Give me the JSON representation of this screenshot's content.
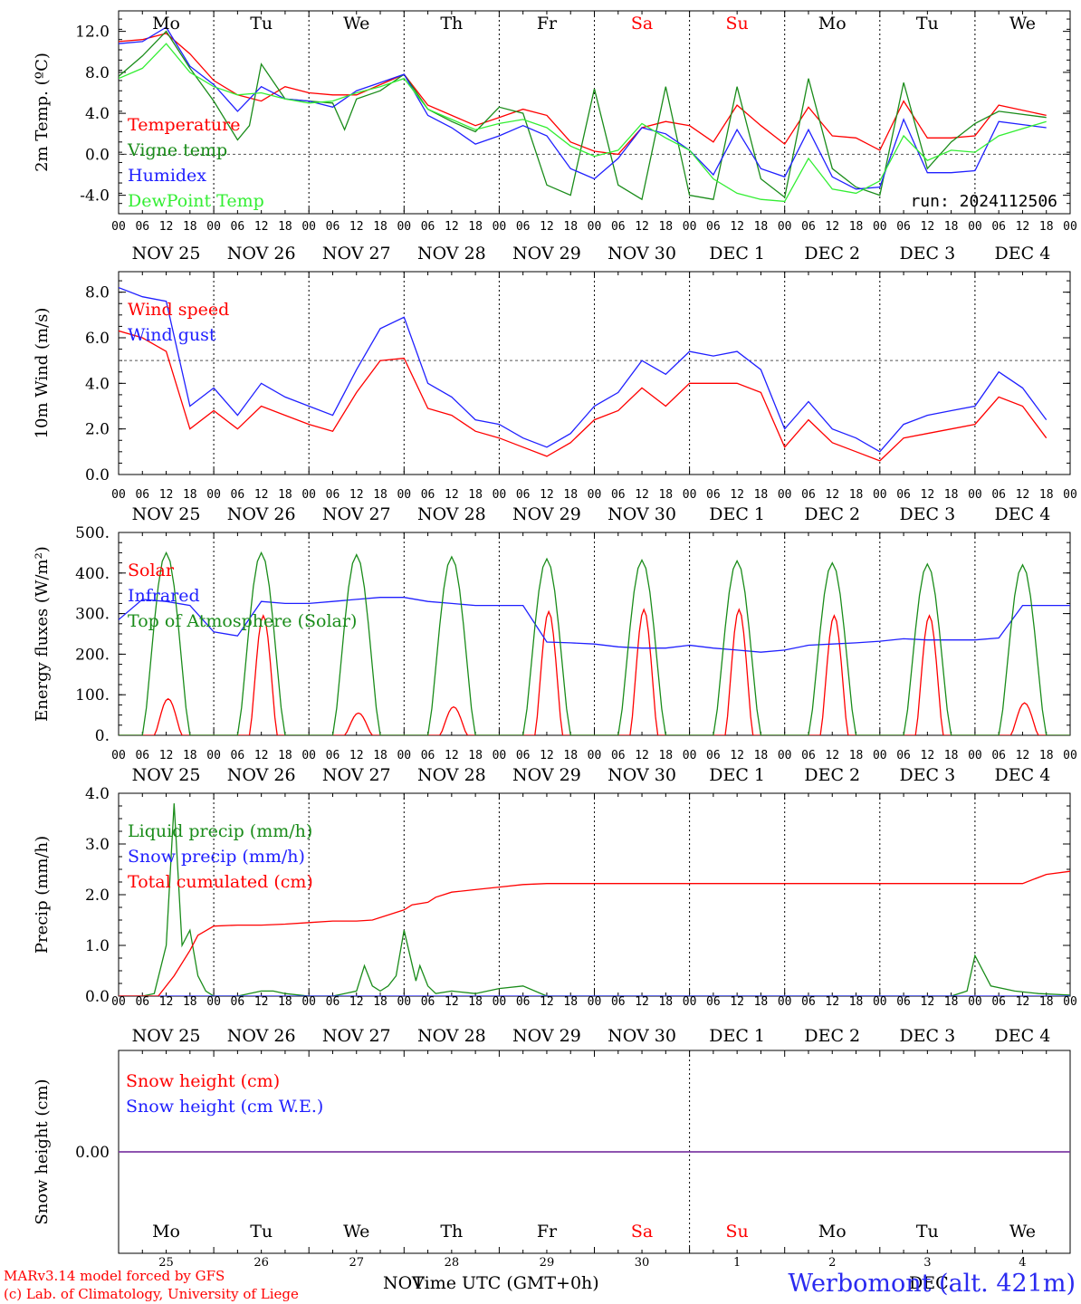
{
  "run_label": "run: 2024112506",
  "station": "Werbomont (alt. 421m)",
  "credits": [
    "MARv3.14 model forced by GFS",
    "(c) Lab. of Climatology, University of Liege"
  ],
  "x_axis": {
    "title": "Time UTC (GMT+0h)",
    "hours": [
      "00",
      "06",
      "12",
      "18"
    ],
    "last_hour": "00",
    "dates": [
      "NOV 25",
      "NOV 26",
      "NOV 27",
      "NOV 28",
      "NOV 29",
      "NOV 30",
      "DEC  1",
      "DEC  2",
      "DEC  3",
      "DEC  4"
    ],
    "weekdays": [
      "Mo",
      "Tu",
      "We",
      "Th",
      "Fr",
      "Sa",
      "Su",
      "Mo",
      "Tu",
      "We"
    ],
    "weekend_color": "#ff0000",
    "bottom_day_numbers": [
      "25",
      "26",
      "27",
      "28",
      "29",
      "30",
      "1",
      "2",
      "3",
      "4"
    ],
    "bottom_months": [
      "NOV",
      "DEC"
    ]
  },
  "colors": {
    "red": "#ff0000",
    "green": "#1a8c1a",
    "blue": "#2020ff",
    "lightgreen": "#33ee33",
    "purple": "#7b3fa6"
  },
  "chart_data": [
    {
      "type": "line",
      "ylabel": "2m Temp. (ºC)",
      "ylim": [
        -5.8,
        14.0
      ],
      "yticks": [
        -4.0,
        0.0,
        4.0,
        8.0,
        12.0
      ],
      "ytick_labels": [
        "-4.0",
        "0.0",
        "4.0",
        "8.0",
        "12.0"
      ],
      "ref_line": 0,
      "legend": [
        "Temperature",
        "Vigne temp",
        "Humidex",
        "DewPoint Temp"
      ],
      "series": [
        {
          "name": "Temperature",
          "color": "red",
          "x": [
            0,
            6,
            12,
            18,
            24,
            30,
            36,
            42,
            48,
            54,
            60,
            66,
            72,
            78,
            84,
            90,
            96,
            102,
            108,
            114,
            120,
            126,
            132,
            138,
            144,
            150,
            156,
            162,
            168,
            174,
            180,
            186,
            192,
            198,
            204,
            210,
            216,
            222,
            234
          ],
          "y": [
            11.0,
            11.2,
            11.8,
            9.8,
            7.2,
            5.8,
            5.2,
            6.6,
            6.0,
            5.8,
            5.8,
            6.8,
            7.8,
            4.8,
            3.8,
            2.8,
            3.6,
            4.4,
            3.8,
            1.2,
            0.3,
            0.0,
            2.6,
            3.2,
            2.8,
            1.2,
            4.8,
            2.8,
            1.0,
            4.6,
            1.8,
            1.6,
            0.4,
            5.2,
            1.6,
            1.6,
            1.8,
            4.8,
            3.8
          ]
        },
        {
          "name": "Vigne temp",
          "color": "green",
          "x": [
            0,
            6,
            12,
            18,
            24,
            30,
            33,
            36,
            42,
            48,
            54,
            57,
            60,
            66,
            72,
            78,
            84,
            90,
            96,
            102,
            108,
            114,
            120,
            126,
            132,
            138,
            144,
            150,
            156,
            162,
            168,
            174,
            180,
            186,
            192,
            198,
            204,
            210,
            216,
            222,
            234
          ],
          "y": [
            7.6,
            9.6,
            12.0,
            8.4,
            5.2,
            1.4,
            2.8,
            8.8,
            5.4,
            5.2,
            5.0,
            2.4,
            5.4,
            6.2,
            7.8,
            4.4,
            3.2,
            2.2,
            4.6,
            4.0,
            -3.0,
            -4.0,
            6.4,
            -3.0,
            -4.4,
            6.6,
            -4.0,
            -4.4,
            6.6,
            -2.4,
            -4.2,
            7.4,
            -1.4,
            -3.2,
            -4.0,
            7.0,
            -1.4,
            1.2,
            3.0,
            4.2,
            3.6
          ]
        },
        {
          "name": "Humidex",
          "color": "blue",
          "x": [
            0,
            6,
            12,
            18,
            24,
            30,
            36,
            42,
            48,
            54,
            60,
            66,
            72,
            78,
            84,
            90,
            96,
            102,
            108,
            114,
            120,
            126,
            132,
            138,
            144,
            150,
            156,
            162,
            168,
            174,
            180,
            186,
            192,
            198,
            204,
            210,
            216,
            222,
            234
          ],
          "y": [
            10.8,
            11.0,
            12.4,
            8.6,
            6.8,
            4.2,
            6.6,
            5.4,
            5.2,
            4.6,
            6.2,
            7.0,
            7.8,
            3.8,
            2.6,
            1.0,
            1.8,
            2.8,
            1.8,
            -1.4,
            -2.4,
            -0.4,
            2.6,
            2.0,
            0.4,
            -2.0,
            2.4,
            -1.4,
            -2.2,
            2.4,
            -2.2,
            -3.4,
            -3.2,
            3.4,
            -1.8,
            -1.8,
            -1.6,
            3.2,
            2.6
          ]
        },
        {
          "name": "DewPoint Temp",
          "color": "lightgreen",
          "x": [
            0,
            6,
            12,
            18,
            24,
            30,
            36,
            42,
            48,
            54,
            60,
            66,
            72,
            78,
            84,
            90,
            96,
            102,
            108,
            114,
            120,
            126,
            132,
            138,
            144,
            150,
            156,
            162,
            168,
            174,
            180,
            186,
            192,
            198,
            204,
            210,
            216,
            222,
            234
          ],
          "y": [
            7.4,
            8.4,
            10.8,
            8.0,
            6.6,
            5.8,
            6.0,
            5.4,
            5.0,
            5.2,
            6.0,
            6.6,
            7.4,
            4.4,
            3.4,
            2.4,
            3.0,
            3.4,
            2.6,
            0.8,
            -0.2,
            0.4,
            3.0,
            1.6,
            0.4,
            -2.4,
            -3.8,
            -4.4,
            -4.6,
            -0.4,
            -3.4,
            -3.8,
            -2.6,
            1.8,
            -0.6,
            0.4,
            0.2,
            1.8,
            3.2
          ]
        }
      ]
    },
    {
      "type": "line",
      "ylabel": "10m Wind (m/s)",
      "ylim": [
        0.0,
        8.9
      ],
      "yticks": [
        0.0,
        2.0,
        4.0,
        6.0,
        8.0
      ],
      "ytick_labels": [
        "0.0",
        "2.0",
        "4.0",
        "6.0",
        "8.0"
      ],
      "ref_line": 5,
      "legend": [
        "Wind speed",
        "Wind gust"
      ],
      "series": [
        {
          "name": "Wind speed",
          "color": "red",
          "x": [
            0,
            6,
            12,
            18,
            24,
            30,
            36,
            42,
            48,
            54,
            60,
            66,
            72,
            78,
            84,
            90,
            96,
            102,
            108,
            114,
            120,
            126,
            132,
            138,
            144,
            150,
            156,
            162,
            168,
            174,
            180,
            186,
            192,
            198,
            204,
            210,
            216,
            222,
            228,
            234
          ],
          "y": [
            6.3,
            6.0,
            5.4,
            2.0,
            2.8,
            2.0,
            3.0,
            2.6,
            2.2,
            1.9,
            3.6,
            5.0,
            5.1,
            2.9,
            2.6,
            1.9,
            1.6,
            1.2,
            0.8,
            1.4,
            2.4,
            2.8,
            3.8,
            3.0,
            4.0,
            4.0,
            4.0,
            3.6,
            1.2,
            2.4,
            1.4,
            1.0,
            0.6,
            1.6,
            1.8,
            2.0,
            2.2,
            3.4,
            3.0,
            1.6
          ]
        },
        {
          "name": "Wind gust",
          "color": "blue",
          "x": [
            0,
            6,
            12,
            18,
            24,
            30,
            36,
            42,
            48,
            54,
            60,
            66,
            72,
            78,
            84,
            90,
            96,
            102,
            108,
            114,
            120,
            126,
            132,
            138,
            144,
            150,
            156,
            162,
            168,
            174,
            180,
            186,
            192,
            198,
            204,
            210,
            216,
            222,
            228,
            234
          ],
          "y": [
            8.2,
            7.8,
            7.6,
            3.0,
            3.8,
            2.6,
            4.0,
            3.4,
            3.0,
            2.6,
            4.6,
            6.4,
            6.9,
            4.0,
            3.4,
            2.4,
            2.2,
            1.6,
            1.2,
            1.8,
            3.0,
            3.6,
            5.0,
            4.4,
            5.4,
            5.2,
            5.4,
            4.6,
            2.0,
            3.2,
            2.0,
            1.6,
            1.0,
            2.2,
            2.6,
            2.8,
            3.0,
            4.5,
            3.8,
            2.4
          ]
        }
      ]
    },
    {
      "type": "line",
      "ylabel": "Energy fluxes (W/m²)",
      "ylim": [
        0,
        500
      ],
      "yticks": [
        0,
        100,
        200,
        300,
        400,
        500
      ],
      "ytick_labels": [
        "0.",
        "100.",
        "200.",
        "300.",
        "400.",
        "500."
      ],
      "legend": [
        "Solar",
        "Infrared",
        "Top of Atmosphere (Solar)"
      ],
      "series": [
        {
          "name": "Solar",
          "color": "red",
          "day_peaks": [
            90,
            295,
            55,
            70,
            305,
            310,
            310,
            295,
            295,
            80
          ]
        },
        {
          "name": "Infrared",
          "color": "blue",
          "x": [
            0,
            6,
            12,
            18,
            24,
            30,
            36,
            42,
            48,
            54,
            60,
            66,
            72,
            78,
            84,
            90,
            96,
            102,
            108,
            114,
            120,
            126,
            132,
            138,
            144,
            150,
            156,
            162,
            168,
            174,
            180,
            186,
            192,
            198,
            204,
            210,
            216,
            222,
            228,
            234,
            240
          ],
          "y": [
            285,
            335,
            330,
            320,
            255,
            245,
            330,
            325,
            325,
            330,
            335,
            340,
            340,
            330,
            325,
            320,
            320,
            320,
            230,
            228,
            225,
            218,
            215,
            215,
            222,
            215,
            210,
            205,
            210,
            222,
            225,
            228,
            232,
            238,
            235,
            235,
            235,
            240,
            320,
            320,
            320
          ]
        },
        {
          "name": "Top of Atmosphere (Solar)",
          "color": "green",
          "day_peaks": [
            450,
            450,
            445,
            440,
            435,
            432,
            430,
            425,
            422,
            420
          ]
        }
      ]
    },
    {
      "type": "line",
      "ylabel": "Precip (mm/h)",
      "ylim": [
        0.0,
        4.0
      ],
      "yticks": [
        0.0,
        1.0,
        2.0,
        3.0,
        4.0
      ],
      "ytick_labels": [
        "0.0",
        "1.0",
        "2.0",
        "3.0",
        "4.0"
      ],
      "legend": [
        "Liquid precip (mm/h)",
        "Snow precip (mm/h)",
        "Total cumulated (cm)"
      ],
      "series": [
        {
          "name": "Liquid precip (mm/h)",
          "color": "green",
          "x": [
            0,
            6,
            9,
            12,
            14,
            16,
            18,
            20,
            22,
            24,
            30,
            36,
            39,
            42,
            48,
            54,
            57,
            60,
            62,
            64,
            66,
            68,
            70,
            72,
            75,
            76,
            78,
            80,
            84,
            90,
            96,
            102,
            108,
            168,
            210,
            214,
            216,
            220,
            226,
            232,
            240
          ],
          "y": [
            0,
            0,
            0.05,
            1.0,
            3.8,
            1.0,
            1.3,
            0.4,
            0.1,
            0.0,
            0,
            0.1,
            0.1,
            0.05,
            0,
            0,
            0.05,
            0.1,
            0.6,
            0.2,
            0.1,
            0.2,
            0.4,
            1.3,
            0.3,
            0.6,
            0.2,
            0.05,
            0.1,
            0.05,
            0.15,
            0.2,
            0,
            0,
            0,
            0.1,
            0.8,
            0.2,
            0.1,
            0.05,
            0.02
          ]
        },
        {
          "name": "Snow precip (mm/h)",
          "color": "blue",
          "x": [
            0,
            240
          ],
          "y": [
            0,
            0
          ]
        },
        {
          "name": "Total cumulated (cm)",
          "color": "red",
          "x": [
            0,
            10,
            14,
            18,
            20,
            24,
            30,
            36,
            42,
            48,
            54,
            60,
            64,
            68,
            72,
            74,
            78,
            80,
            84,
            90,
            96,
            102,
            108,
            168,
            228,
            234,
            240
          ],
          "y": [
            0,
            0,
            0.4,
            0.9,
            1.2,
            1.38,
            1.4,
            1.4,
            1.42,
            1.45,
            1.48,
            1.48,
            1.5,
            1.6,
            1.7,
            1.8,
            1.85,
            1.95,
            2.05,
            2.1,
            2.15,
            2.2,
            2.22,
            2.22,
            2.22,
            2.4,
            2.46
          ]
        }
      ]
    },
    {
      "type": "line",
      "ylabel": "Snow height (cm)",
      "ylim": [
        -1,
        1
      ],
      "yticks": [
        0.0
      ],
      "ytick_labels": [
        "0.00"
      ],
      "legend": [
        "Snow height (cm)",
        "Snow height (cm W.E.)"
      ],
      "series": [
        {
          "name": "Snow height (cm)",
          "color": "red",
          "x": [
            0,
            240
          ],
          "y": [
            0,
            0
          ]
        },
        {
          "name": "Snow height (cm W.E.)",
          "color": "blue",
          "x": [
            0,
            240
          ],
          "y": [
            0,
            0
          ]
        }
      ]
    }
  ]
}
